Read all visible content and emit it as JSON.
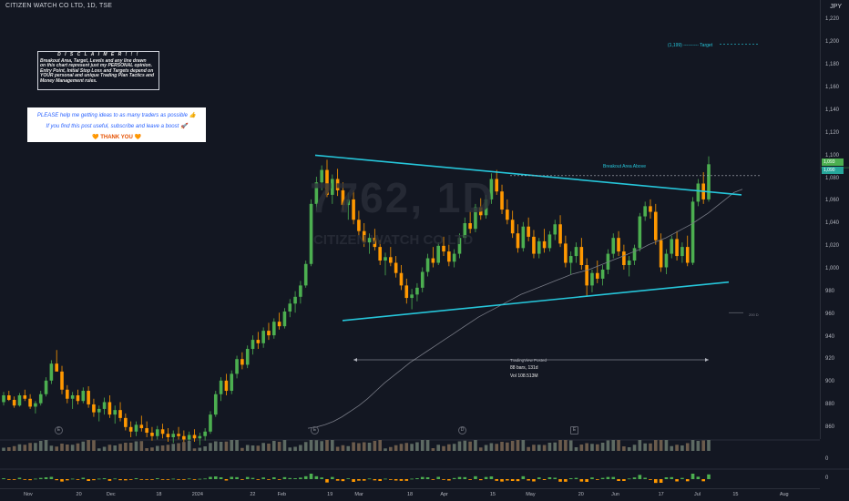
{
  "header": {
    "symbol_line": "CITIZEN WATCH CO LTD, 1D, TSE",
    "currency": "JPY"
  },
  "watermark": {
    "ticker": "7762, 1D",
    "company": "CITIZEN WATCH CO LTD"
  },
  "disclaimer": {
    "title": "D I S C L A I M E R  ! ! !",
    "lines": [
      "Breakout Area, Target, Levels and any line drawn",
      "on this chart represent just my PERSONAL opinion.",
      "Entry Point, Initial Stop Loss and Targets depend on",
      "YOUR personal and unique Trading Plan Tactics and",
      "Money Management rules."
    ]
  },
  "note": {
    "line1": "PLEASE help me getting ideas to as many traders as possible 👍",
    "line2": "If you find this post useful, subscribe and leave a boost 🚀",
    "line3": "🧡 THANK YOU 🧡"
  },
  "target": {
    "text": "(1,199) ---------- Target",
    "value": 1199
  },
  "breakout": {
    "text": "Breakout Area Above",
    "value": 1083
  },
  "measure": {
    "watermark": "TradingView Posted",
    "bars": "88 bars, 131d",
    "vol": "Vol 108.513M"
  },
  "ma_label": "200 D",
  "price_badges": {
    "last": "1,093",
    "prev": "1,090"
  },
  "colors": {
    "background": "#131722",
    "up": "#4caf50",
    "down": "#ff9800",
    "trendline": "#26c6da",
    "ma": "#787b86"
  },
  "chart_data": {
    "type": "candlestick",
    "y_ticks": [
      1220,
      1200,
      1180,
      1160,
      1140,
      1120,
      1100,
      1080,
      1060,
      1040,
      1020,
      1000,
      980,
      960,
      940,
      920,
      900,
      880,
      860
    ],
    "y_tick_labels": [
      "1,220",
      "1,200",
      "1,180",
      "1,160",
      "1,140",
      "1,120",
      "1,100",
      "1,080",
      "1,060",
      "1,040",
      "1,020",
      "1,000",
      "980",
      "960",
      "940",
      "920",
      "900",
      "880",
      "860"
    ],
    "ylim": [
      852,
      1230
    ],
    "x_labels": [
      "Nov",
      "20",
      "Dec",
      "18",
      "2024",
      "22",
      "Feb",
      "19",
      "Mar",
      "18",
      "Apr",
      "15",
      "May",
      "20",
      "Jun",
      "17",
      "Jul",
      "15",
      "Aug"
    ],
    "x_positions_days": [
      0,
      19,
      30,
      48,
      61,
      82,
      92,
      110,
      120,
      139,
      151,
      169,
      182,
      201,
      213,
      230,
      243,
      257,
      274
    ],
    "candles": [
      [
        883,
        892,
        880,
        889
      ],
      [
        889,
        893,
        884,
        885
      ],
      [
        885,
        888,
        878,
        880
      ],
      [
        880,
        891,
        879,
        889
      ],
      [
        889,
        894,
        884,
        886
      ],
      [
        886,
        890,
        877,
        879
      ],
      [
        879,
        884,
        873,
        882
      ],
      [
        882,
        893,
        880,
        890
      ],
      [
        890,
        905,
        888,
        902
      ],
      [
        902,
        920,
        899,
        917
      ],
      [
        917,
        929,
        913,
        910
      ],
      [
        910,
        915,
        890,
        894
      ],
      [
        894,
        898,
        882,
        886
      ],
      [
        886,
        892,
        877,
        889
      ],
      [
        889,
        894,
        881,
        884
      ],
      [
        884,
        896,
        882,
        893
      ],
      [
        893,
        897,
        878,
        881
      ],
      [
        881,
        886,
        870,
        874
      ],
      [
        874,
        880,
        866,
        877
      ],
      [
        877,
        887,
        872,
        883
      ],
      [
        883,
        889,
        869,
        872
      ],
      [
        872,
        880,
        864,
        876
      ],
      [
        876,
        883,
        866,
        869
      ],
      [
        869,
        873,
        858,
        861
      ],
      [
        861,
        866,
        852,
        857
      ],
      [
        857,
        866,
        853,
        863
      ],
      [
        863,
        871,
        857,
        860
      ],
      [
        860,
        866,
        852,
        856
      ],
      [
        856,
        861,
        849,
        853
      ],
      [
        853,
        862,
        850,
        859
      ],
      [
        859,
        864,
        851,
        855
      ],
      [
        855,
        860,
        848,
        852
      ],
      [
        852,
        858,
        847,
        855
      ],
      [
        855,
        861,
        850,
        853
      ],
      [
        853,
        858,
        846,
        850
      ],
      [
        850,
        857,
        846,
        854
      ],
      [
        854,
        859,
        848,
        851
      ],
      [
        851,
        856,
        845,
        853
      ],
      [
        853,
        860,
        849,
        857
      ],
      [
        857,
        875,
        855,
        872
      ],
      [
        872,
        893,
        870,
        890
      ],
      [
        890,
        905,
        884,
        902
      ],
      [
        902,
        908,
        889,
        893
      ],
      [
        893,
        911,
        890,
        908
      ],
      [
        908,
        924,
        904,
        921
      ],
      [
        921,
        927,
        912,
        916
      ],
      [
        916,
        933,
        913,
        930
      ],
      [
        930,
        942,
        925,
        938
      ],
      [
        938,
        945,
        930,
        935
      ],
      [
        935,
        949,
        931,
        946
      ],
      [
        946,
        953,
        938,
        942
      ],
      [
        942,
        957,
        939,
        954
      ],
      [
        954,
        962,
        947,
        950
      ],
      [
        950,
        966,
        948,
        963
      ],
      [
        963,
        974,
        958,
        970
      ],
      [
        970,
        981,
        962,
        976
      ],
      [
        976,
        990,
        970,
        986
      ],
      [
        986,
        1008,
        984,
        1005
      ],
      [
        1005,
        1062,
        1003,
        1058
      ],
      [
        1058,
        1082,
        1052,
        1077
      ],
      [
        1077,
        1092,
        1070,
        1088
      ],
      [
        1088,
        1097,
        1064,
        1066
      ],
      [
        1066,
        1084,
        1058,
        1080
      ],
      [
        1080,
        1089,
        1065,
        1070
      ],
      [
        1070,
        1077,
        1052,
        1057
      ],
      [
        1057,
        1068,
        1044,
        1062
      ],
      [
        1062,
        1070,
        1040,
        1044
      ],
      [
        1044,
        1052,
        1030,
        1034
      ],
      [
        1034,
        1041,
        1020,
        1024
      ],
      [
        1024,
        1032,
        1014,
        1028
      ],
      [
        1028,
        1036,
        1017,
        1020
      ],
      [
        1020,
        1026,
        1004,
        1008
      ],
      [
        1008,
        1015,
        995,
        1011
      ],
      [
        1011,
        1020,
        1003,
        1006
      ],
      [
        1006,
        1012,
        993,
        997
      ],
      [
        997,
        1004,
        982,
        986
      ],
      [
        986,
        992,
        970,
        975
      ],
      [
        975,
        983,
        965,
        978
      ],
      [
        978,
        988,
        972,
        984
      ],
      [
        984,
        1002,
        980,
        998
      ],
      [
        998,
        1014,
        994,
        1010
      ],
      [
        1010,
        1020,
        1002,
        1006
      ],
      [
        1006,
        1024,
        1004,
        1021
      ],
      [
        1021,
        1029,
        1012,
        1016
      ],
      [
        1016,
        1022,
        1003,
        1007
      ],
      [
        1007,
        1018,
        1002,
        1014
      ],
      [
        1014,
        1032,
        1010,
        1028
      ],
      [
        1028,
        1046,
        1024,
        1041
      ],
      [
        1041,
        1052,
        1032,
        1036
      ],
      [
        1036,
        1058,
        1033,
        1055
      ],
      [
        1055,
        1063,
        1044,
        1048
      ],
      [
        1048,
        1066,
        1045,
        1062
      ],
      [
        1062,
        1085,
        1058,
        1080
      ],
      [
        1080,
        1088,
        1066,
        1069
      ],
      [
        1069,
        1075,
        1049,
        1053
      ],
      [
        1053,
        1062,
        1040,
        1044
      ],
      [
        1044,
        1052,
        1028,
        1032
      ],
      [
        1032,
        1040,
        1015,
        1019
      ],
      [
        1019,
        1042,
        1016,
        1038
      ],
      [
        1038,
        1046,
        1025,
        1029
      ],
      [
        1029,
        1035,
        1010,
        1014
      ],
      [
        1014,
        1028,
        1010,
        1025
      ],
      [
        1025,
        1036,
        1015,
        1019
      ],
      [
        1019,
        1034,
        1016,
        1031
      ],
      [
        1031,
        1044,
        1026,
        1040
      ],
      [
        1040,
        1048,
        1020,
        1023
      ],
      [
        1023,
        1030,
        1002,
        1006
      ],
      [
        1006,
        1016,
        996,
        1012
      ],
      [
        1012,
        1024,
        1006,
        1020
      ],
      [
        1020,
        1028,
        1000,
        1004
      ],
      [
        1004,
        1010,
        977,
        986
      ],
      [
        986,
        1000,
        980,
        997
      ],
      [
        997,
        1008,
        988,
        992
      ],
      [
        992,
        1004,
        986,
        1000
      ],
      [
        1000,
        1018,
        996,
        1014
      ],
      [
        1014,
        1032,
        1010,
        1028
      ],
      [
        1028,
        1034,
        1012,
        1016
      ],
      [
        1016,
        1022,
        1000,
        1004
      ],
      [
        1004,
        1012,
        994,
        1008
      ],
      [
        1008,
        1022,
        1004,
        1019
      ],
      [
        1019,
        1050,
        1016,
        1047
      ],
      [
        1047,
        1060,
        1043,
        1056
      ],
      [
        1056,
        1062,
        1045,
        1051
      ],
      [
        1051,
        1058,
        1022,
        1026
      ],
      [
        1026,
        1032,
        998,
        1002
      ],
      [
        1002,
        1018,
        996,
        1014
      ],
      [
        1014,
        1030,
        1010,
        1027
      ],
      [
        1027,
        1034,
        1008,
        1012
      ],
      [
        1012,
        1024,
        1006,
        1020
      ],
      [
        1020,
        1030,
        1003,
        1006
      ],
      [
        1006,
        1064,
        1004,
        1060
      ],
      [
        1060,
        1080,
        1056,
        1076
      ],
      [
        1076,
        1086,
        1058,
        1062
      ],
      [
        1062,
        1100,
        1060,
        1093
      ]
    ],
    "trendline_upper": {
      "from": [
        0.0,
        1101
      ],
      "to": [
        1.0,
        1066
      ]
    },
    "trendline_lower": {
      "from": [
        0.0,
        955
      ],
      "to": [
        1.0,
        989
      ]
    },
    "ma200": [
      860,
      861,
      863,
      866,
      870,
      875,
      880,
      886,
      893,
      900,
      906,
      912,
      918,
      923,
      928,
      933,
      938,
      943,
      948,
      953,
      958,
      962,
      966,
      970,
      974,
      978,
      981,
      984,
      987,
      990,
      993,
      996,
      998,
      1000,
      1003,
      1006,
      1009,
      1012,
      1015,
      1018,
      1022,
      1025,
      1028,
      1032,
      1036,
      1040,
      1045,
      1050,
      1056,
      1062,
      1068,
      1071
    ]
  }
}
